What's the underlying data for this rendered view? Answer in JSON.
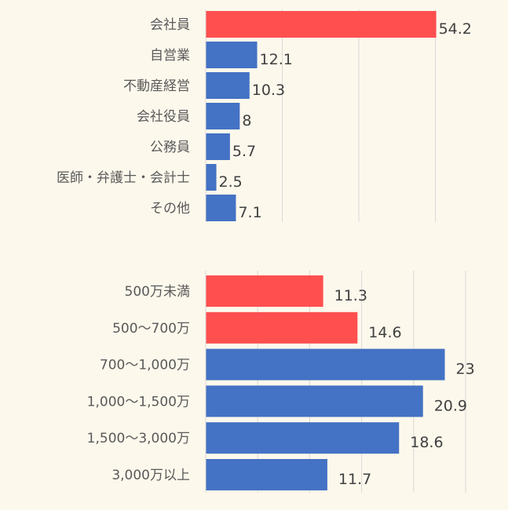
{
  "colors": {
    "highlight": "#ff4f4f",
    "base": "#4472c4",
    "background": "#fdf8ec",
    "grid": "#d9d9d9"
  },
  "chart_data": [
    {
      "type": "bar",
      "orientation": "horizontal",
      "categories": [
        "会社員",
        "自営業",
        "不動産経営",
        "会社役員",
        "公務員",
        "医師・弁護士・会計士",
        "その他"
      ],
      "values": [
        54.2,
        12.1,
        10.3,
        8,
        5.7,
        2.5,
        7.1
      ],
      "value_labels": [
        "54.2",
        "12.1",
        "10.3",
        "8",
        "5.7",
        "2.5",
        "7.1"
      ],
      "highlighted": [
        true,
        false,
        false,
        false,
        false,
        false,
        false
      ],
      "xlim": [
        0,
        60
      ],
      "grid": true,
      "title": "",
      "xlabel": "",
      "ylabel": ""
    },
    {
      "type": "bar",
      "orientation": "horizontal",
      "categories": [
        "500万未満",
        "500〜700万",
        "700〜1,000万",
        "1,000〜1,500万",
        "1,500〜3,000万",
        "3,000万以上"
      ],
      "values": [
        11.3,
        14.6,
        23,
        20.9,
        18.6,
        11.7
      ],
      "value_labels": [
        "11.3",
        "14.6",
        "23",
        "20.9",
        "18.6",
        "11.7"
      ],
      "highlighted": [
        true,
        true,
        false,
        false,
        false,
        false
      ],
      "xlim": [
        0,
        25
      ],
      "grid": true,
      "title": "",
      "xlabel": "",
      "ylabel": ""
    }
  ]
}
